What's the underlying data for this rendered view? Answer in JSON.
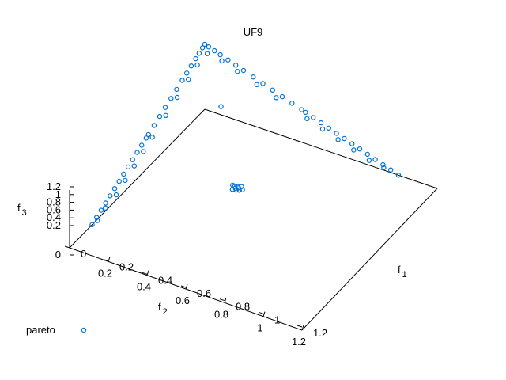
{
  "chart_data": {
    "type": "scatter",
    "title": "UF9",
    "axes": {
      "x": {
        "label_base": "f",
        "label_sub": "1",
        "ticks": [
          "0",
          "0.2",
          "0.4",
          "0.6",
          "0.8",
          "1",
          "1.2"
        ],
        "range": [
          0,
          1.2
        ]
      },
      "y": {
        "label_base": "f",
        "label_sub": "2",
        "ticks": [
          "0.2",
          "0.4",
          "0.6",
          "0.8",
          "1",
          "1.2"
        ],
        "range": [
          0,
          1.2
        ]
      },
      "z": {
        "label_base": "f",
        "label_sub": "3",
        "ticks": [
          "0",
          "0.2",
          "0.4",
          "0.6",
          "0.8",
          "1",
          "1.2"
        ],
        "range": [
          0,
          1.2
        ]
      }
    },
    "legend": {
      "position": "bottom-left"
    },
    "series": [
      {
        "name": "pareto",
        "color": "#0072d6",
        "marker": "open-circle",
        "points": [
          [
            0.42,
            0.45,
            0.01
          ],
          [
            0.43,
            0.44,
            0.01
          ],
          [
            0.44,
            0.45,
            0.0
          ],
          [
            0.41,
            0.46,
            0.0
          ],
          [
            0.44,
            0.43,
            0.02
          ],
          [
            0.42,
            0.43,
            0.0
          ],
          [
            0.4,
            0.44,
            0.02
          ],
          [
            0.43,
            0.46,
            0.01
          ],
          [
            0.45,
            0.44,
            0.0
          ],
          [
            0.41,
            0.44,
            0.01
          ],
          [
            0.0,
            0.5,
            0.5
          ],
          [
            0.0,
            0.52,
            0.48
          ],
          [
            0.0,
            0.56,
            0.44
          ],
          [
            0.0,
            0.6,
            0.4
          ],
          [
            0.0,
            0.64,
            0.36
          ],
          [
            0.0,
            0.68,
            0.32
          ],
          [
            0.0,
            0.72,
            0.28
          ],
          [
            0.0,
            0.76,
            0.24
          ],
          [
            0.0,
            0.8,
            0.2
          ],
          [
            0.0,
            0.84,
            0.16
          ],
          [
            0.0,
            0.88,
            0.12
          ],
          [
            0.0,
            0.92,
            0.08
          ],
          [
            0.0,
            0.96,
            0.04
          ],
          [
            0.0,
            1.0,
            0.0
          ],
          [
            0.02,
            0.5,
            0.48
          ],
          [
            0.02,
            0.58,
            0.4
          ],
          [
            0.02,
            0.66,
            0.32
          ],
          [
            0.02,
            0.74,
            0.24
          ],
          [
            0.02,
            0.82,
            0.16
          ],
          [
            0.01,
            0.9,
            0.09
          ],
          [
            0.01,
            0.97,
            0.02
          ],
          [
            0.5,
            0.0,
            0.5
          ],
          [
            0.52,
            0.0,
            0.48
          ],
          [
            0.56,
            0.0,
            0.44
          ],
          [
            0.6,
            0.0,
            0.4
          ],
          [
            0.64,
            0.0,
            0.36
          ],
          [
            0.68,
            0.0,
            0.32
          ],
          [
            0.72,
            0.0,
            0.28
          ],
          [
            0.76,
            0.0,
            0.24
          ],
          [
            0.8,
            0.0,
            0.2
          ],
          [
            0.84,
            0.0,
            0.16
          ],
          [
            0.88,
            0.0,
            0.12
          ],
          [
            0.92,
            0.0,
            0.08
          ],
          [
            0.96,
            0.0,
            0.04
          ],
          [
            1.0,
            0.0,
            0.0
          ],
          [
            0.54,
            0.02,
            0.44
          ],
          [
            0.62,
            0.02,
            0.36
          ],
          [
            0.7,
            0.02,
            0.28
          ],
          [
            0.78,
            0.02,
            0.2
          ],
          [
            0.86,
            0.02,
            0.12
          ],
          [
            0.93,
            0.01,
            0.06
          ],
          [
            0.0,
            0.0,
            1.0
          ],
          [
            0.02,
            0.0,
            0.98
          ],
          [
            0.0,
            0.02,
            0.98
          ],
          [
            0.05,
            0.0,
            0.95
          ],
          [
            0.0,
            0.05,
            0.95
          ],
          [
            0.08,
            0.0,
            0.92
          ],
          [
            0.0,
            0.08,
            0.92
          ],
          [
            0.12,
            0.0,
            0.88
          ],
          [
            0.0,
            0.12,
            0.88
          ],
          [
            0.16,
            0.0,
            0.84
          ],
          [
            0.0,
            0.16,
            0.84
          ],
          [
            0.2,
            0.0,
            0.8
          ],
          [
            0.0,
            0.2,
            0.8
          ],
          [
            0.25,
            0.0,
            0.75
          ],
          [
            0.0,
            0.25,
            0.75
          ],
          [
            0.3,
            0.0,
            0.7
          ],
          [
            0.0,
            0.3,
            0.7
          ],
          [
            0.35,
            0.0,
            0.65
          ],
          [
            0.0,
            0.35,
            0.65
          ],
          [
            0.4,
            0.0,
            0.6
          ],
          [
            0.0,
            0.4,
            0.6
          ],
          [
            0.45,
            0.0,
            0.55
          ],
          [
            0.0,
            0.45,
            0.55
          ],
          [
            0.03,
            0.03,
            0.94
          ],
          [
            0.1,
            0.02,
            0.88
          ],
          [
            0.02,
            0.1,
            0.88
          ],
          [
            0.18,
            0.02,
            0.8
          ],
          [
            0.02,
            0.18,
            0.8
          ],
          [
            0.28,
            0.02,
            0.7
          ],
          [
            0.02,
            0.28,
            0.7
          ],
          [
            0.38,
            0.02,
            0.6
          ],
          [
            0.02,
            0.38,
            0.6
          ],
          [
            0.2,
            0.2,
            0.6
          ]
        ]
      }
    ]
  }
}
